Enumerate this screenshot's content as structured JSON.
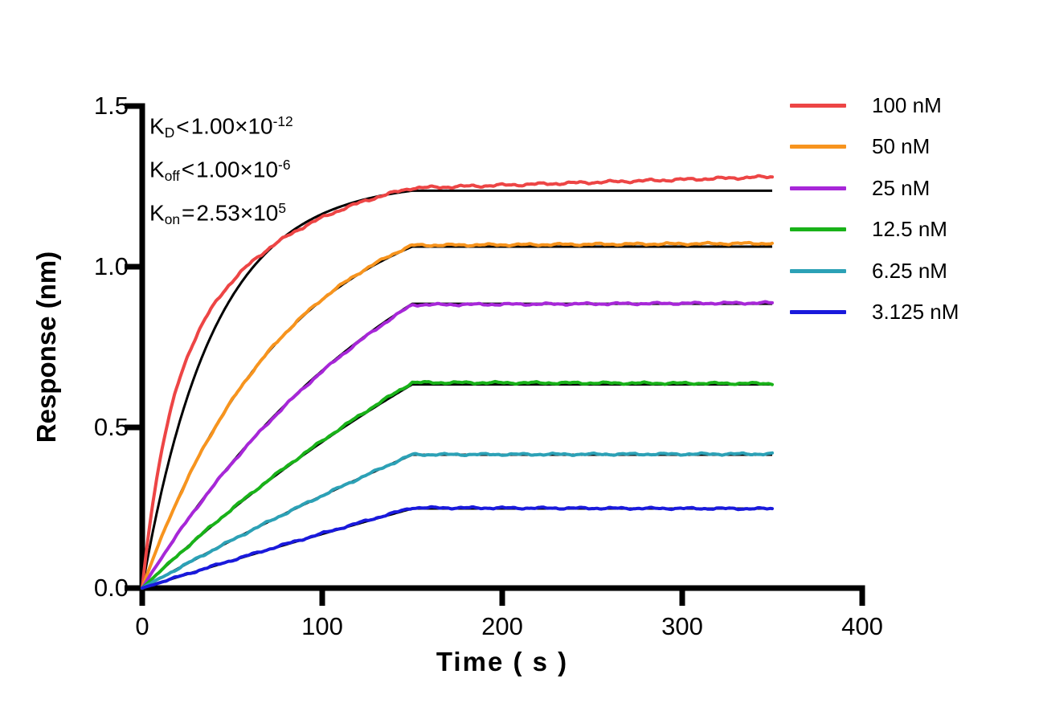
{
  "chart_data": {
    "type": "line",
    "title": "",
    "xlabel": "Time ( s )",
    "ylabel": "Response (nm)",
    "xlim": [
      0,
      400
    ],
    "ylim": [
      0,
      1.5
    ],
    "grid": false,
    "legend_position": "right",
    "xticks": [
      0,
      100,
      200,
      300,
      400
    ],
    "yticks": [
      0,
      0.5,
      1.0,
      1.5
    ],
    "xtick_labels": [
      "0",
      "100",
      "200",
      "300",
      "400"
    ],
    "ytick_labels": [
      "0.0",
      "0.5",
      "1.0",
      "1.5"
    ],
    "association_end_s": 150,
    "curve_end_s": 350,
    "fit_color": "#000000",
    "axis_color": "#000000",
    "annotations": [
      {
        "k": "K",
        "sub": "D",
        "rel": "<",
        "mid": "1.00×10",
        "sup": "-12"
      },
      {
        "k": "K",
        "sub": "off",
        "rel": "<",
        "mid": "1.00×10",
        "sup": "-6"
      },
      {
        "k": "K",
        "sub": "on",
        "rel": "=",
        "mid": "2.53×10",
        "sup": "5"
      }
    ],
    "series": [
      {
        "label": "100 nM",
        "conc_nM": 100,
        "color": "#ED4545",
        "response_at_150s_nm": 1.26,
        "response_at_350s_nm": 1.28,
        "fit_plateau_nm": 1.237,
        "fit": {
          "A": 1.265,
          "k": 0.0253
        },
        "data": {
          "components": [
            [
              0.62,
              0.07
            ],
            [
              0.72,
              0.0135
            ]
          ],
          "drift": 0.035,
          "noise": 0.005
        }
      },
      {
        "label": "50 nM",
        "conc_nM": 50,
        "color": "#F7941E",
        "response_at_150s_nm": 1.065,
        "response_at_350s_nm": 1.07,
        "fit_plateau_nm": 1.063,
        "fit": {
          "A": 1.25,
          "k": 0.01265
        },
        "data": {
          "components": [
            [
              1.26,
              0.0125
            ]
          ],
          "drift": 0.006,
          "noise": 0.004
        }
      },
      {
        "label": "25 nM",
        "conc_nM": 25,
        "color": "#A727D8",
        "response_at_150s_nm": 0.882,
        "response_at_350s_nm": 0.888,
        "fit_plateau_nm": 0.885,
        "fit": {
          "A": 1.444,
          "k": 0.006325
        },
        "data": {
          "components": [
            [
              1.442,
              0.0063
            ]
          ],
          "drift": 0.006,
          "noise": 0.004
        }
      },
      {
        "label": "12.5 nM",
        "conc_nM": 12.5,
        "color": "#19B219",
        "response_at_150s_nm": 0.64,
        "response_at_350s_nm": 0.637,
        "fit_plateau_nm": 0.633,
        "fit": {
          "A": 1.678,
          "k": 0.0031625
        },
        "data": {
          "components": [
            [
              1.72,
              0.0031
            ]
          ],
          "drift": -0.003,
          "noise": 0.004
        }
      },
      {
        "label": "6.25 nM",
        "conc_nM": 6.25,
        "color": "#2CA1B6",
        "response_at_150s_nm": 0.415,
        "response_at_350s_nm": 0.417,
        "fit_plateau_nm": 0.4155,
        "fit": {
          "A": 1.9665,
          "k": 0.00158
        },
        "data": {
          "components": [
            [
              1.98,
              0.00157
            ]
          ],
          "drift": 0.002,
          "noise": 0.0038
        }
      },
      {
        "label": "3.125 nM",
        "conc_nM": 3.125,
        "color": "#1919DC",
        "response_at_150s_nm": 0.25,
        "response_at_350s_nm": 0.247,
        "fit_plateau_nm": 0.248,
        "fit": {
          "A": 2.2143,
          "k": 0.00079
        },
        "data": {
          "components": [
            [
              2.16,
              0.00082
            ]
          ],
          "drift": -0.003,
          "noise": 0.0036
        }
      }
    ]
  }
}
